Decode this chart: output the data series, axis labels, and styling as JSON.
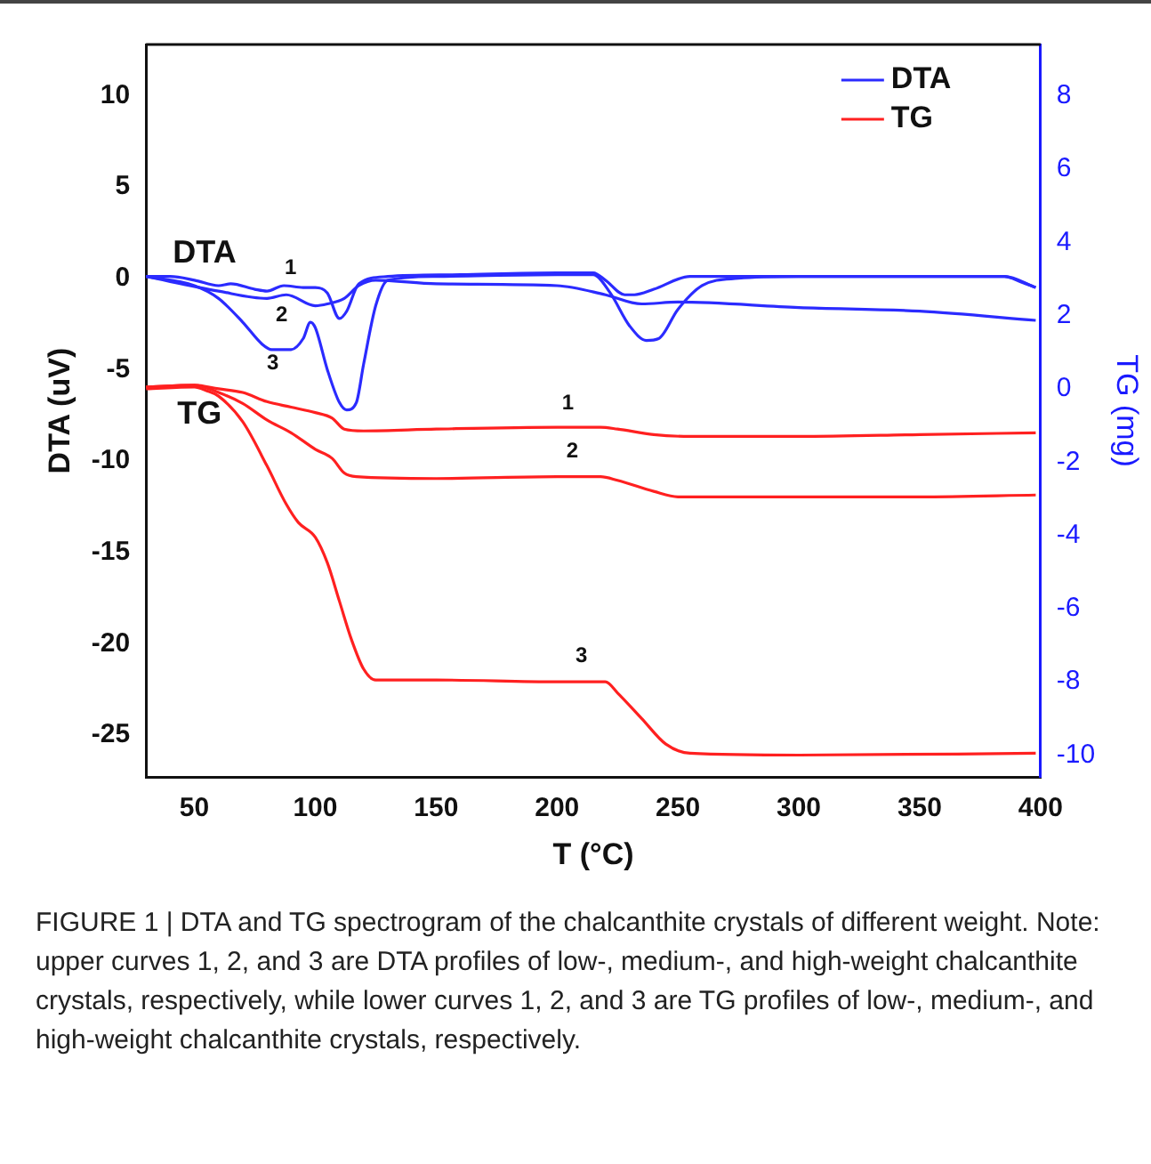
{
  "chart_data": {
    "type": "line",
    "xlabel": "T (°C)",
    "ylabel": "DTA (uV)",
    "y2label": "TG (mg)",
    "xlim": [
      30,
      400
    ],
    "xticks": [
      50,
      100,
      150,
      200,
      250,
      300,
      350,
      400
    ],
    "ylim": [
      -27.3,
      12.8
    ],
    "yticks": [
      -25,
      -20,
      -15,
      -10,
      -5,
      0,
      5,
      10
    ],
    "y2lim": [
      -10.6,
      9.4
    ],
    "y2ticks": [
      -10,
      -8,
      -6,
      -4,
      -2,
      0,
      2,
      4,
      6,
      8
    ],
    "legend": "top right",
    "grid": false,
    "marker": "none",
    "line_style": "solid",
    "series": [
      {
        "name": "DTA",
        "color": "#2b2bff",
        "x": [
          30,
          40,
          50,
          60,
          65,
          75,
          80,
          87,
          95,
          100,
          105,
          110,
          113,
          118,
          130,
          160,
          200,
          215,
          220,
          228,
          232,
          240,
          255,
          300,
          350,
          385,
          392,
          398
        ],
        "values": [
          0.1,
          0.1,
          -0.1,
          -0.4,
          -0.3,
          -0.6,
          -0.7,
          -0.4,
          -0.5,
          -0.5,
          -0.8,
          -2.2,
          -1.8,
          -0.3,
          0.1,
          0.2,
          0.3,
          0.3,
          -0.1,
          -0.9,
          -0.9,
          -0.6,
          0.1,
          0.1,
          0.1,
          0.1,
          -0.2,
          -0.5
        ]
      },
      {
        "color": "#2b2bff",
        "x": [
          30,
          60,
          80,
          88,
          100,
          105,
          112,
          118,
          125,
          150,
          200,
          220,
          235,
          250,
          300,
          350,
          398
        ],
        "values": [
          0.1,
          -0.7,
          -1.1,
          -0.9,
          -1.5,
          -1.4,
          -1.1,
          -0.4,
          -0.1,
          -0.3,
          -0.4,
          -0.9,
          -1.4,
          -1.3,
          -1.6,
          -1.8,
          -2.3
        ]
      },
      {
        "color": "#2b2bff",
        "x": [
          30,
          50,
          60,
          70,
          78,
          82,
          90,
          95,
          98,
          100,
          105,
          110,
          113,
          117,
          120,
          125,
          130,
          150,
          200,
          215,
          222,
          230,
          237,
          242,
          250,
          260,
          275,
          300,
          350,
          385,
          398
        ],
        "values": [
          0.1,
          -0.4,
          -1.1,
          -2.4,
          -3.6,
          -3.9,
          -3.9,
          -3.3,
          -2.4,
          -2.7,
          -5.0,
          -6.8,
          -7.2,
          -6.8,
          -4.7,
          -1.5,
          -0.1,
          0.1,
          0.2,
          0.2,
          -0.8,
          -2.6,
          -3.4,
          -3.3,
          -1.7,
          -0.4,
          0,
          0.1,
          0.1,
          0.1,
          -0.5
        ]
      },
      {
        "name": "TG",
        "color": "#ff2020",
        "axis": "y2",
        "x": [
          30,
          50,
          60,
          70,
          80,
          90,
          100,
          107,
          112,
          120,
          150,
          200,
          218,
          225,
          240,
          255,
          300,
          350,
          398
        ],
        "values": [
          0.05,
          0.1,
          0,
          -0.1,
          -0.35,
          -0.5,
          -0.65,
          -0.8,
          -1.1,
          -1.15,
          -1.1,
          -1.05,
          -1.05,
          -1.1,
          -1.25,
          -1.3,
          -1.3,
          -1.25,
          -1.2
        ]
      },
      {
        "color": "#ff2020",
        "axis": "y2",
        "x": [
          30,
          50,
          60,
          70,
          80,
          90,
          100,
          107,
          112,
          117,
          150,
          200,
          218,
          225,
          240,
          250,
          300,
          350,
          398
        ],
        "values": [
          0.05,
          0.1,
          -0.1,
          -0.4,
          -0.85,
          -1.2,
          -1.65,
          -1.9,
          -2.3,
          -2.4,
          -2.45,
          -2.4,
          -2.4,
          -2.5,
          -2.8,
          -2.95,
          -2.95,
          -2.95,
          -2.9
        ]
      },
      {
        "color": "#ff2020",
        "axis": "y2",
        "x": [
          30,
          50,
          55,
          60,
          70,
          80,
          88,
          93,
          100,
          105,
          110,
          115,
          120,
          125,
          150,
          200,
          220,
          225,
          235,
          245,
          255,
          300,
          398
        ],
        "values": [
          0,
          0.05,
          -0.05,
          -0.2,
          -0.9,
          -2.1,
          -3.15,
          -3.65,
          -4.05,
          -4.75,
          -5.8,
          -6.85,
          -7.65,
          -7.95,
          -7.95,
          -8,
          -8,
          -8.3,
          -9,
          -9.7,
          -9.95,
          -10,
          -9.95
        ]
      }
    ],
    "annotations": [
      "DTA",
      "TG",
      "1",
      "2",
      "3",
      "1",
      "2",
      "3",
      "FIGURE 1 | DTA and TG spectrogram of the chalcanthite crystals of different weight. Note: upper curves 1, 2, and 3 are DTA profiles of low-, medium-, and high-weight chalcanthite crystals, respectively, while lower curves 1, 2, and 3 are TG profiles of low-, medium-, and high-weight chalcanthite crystals, respectively."
    ]
  }
}
